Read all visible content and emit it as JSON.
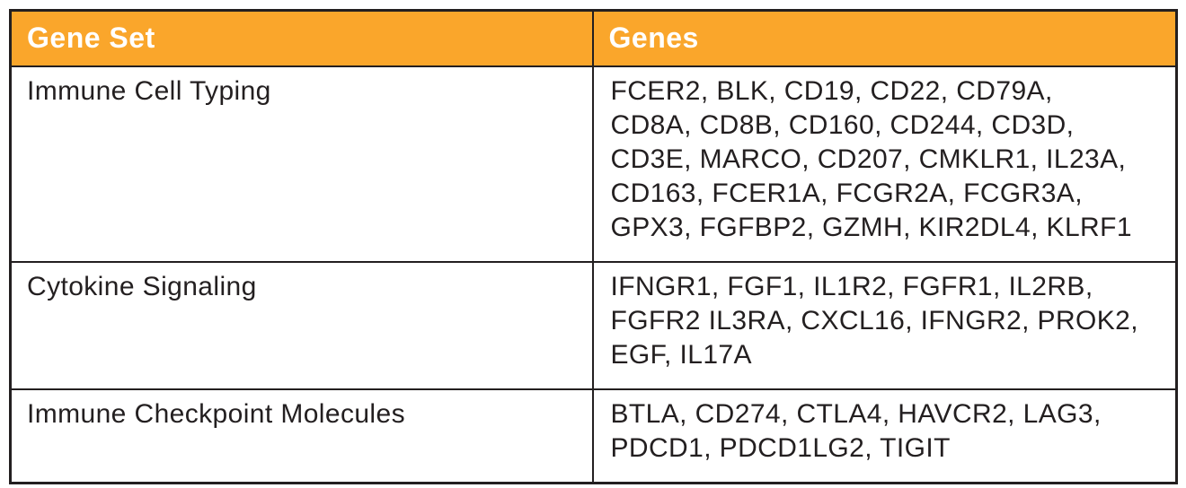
{
  "table": {
    "headers": [
      "Gene Set",
      "Genes"
    ],
    "rows": [
      {
        "gene_set": "Immune Cell Typing",
        "genes": "FCER2, BLK, CD19, CD22, CD79A, CD8A, CD8B, CD160, CD244, CD3D, CD3E, MARCO, CD207, CMKLR1, IL23A, CD163, FCER1A, FCGR2A, FCGR3A, GPX3, FGFBP2, GZMH, KIR2DL4, KLRF1",
        "genes_lines": [
          "FCER2, BLK, CD19, CD22, CD79A,",
          "CD8A, CD8B, CD160, CD244, CD3D,",
          "CD3E, MARCO, CD207, CMKLR1, IL23A,",
          "CD163, FCER1A, FCGR2A, FCGR3A,",
          "GPX3, FGFBP2, GZMH, KIR2DL4, KLRF1"
        ]
      },
      {
        "gene_set": "Cytokine Signaling",
        "genes": "IFNGR1, FGF1, IL1R2, FGFR1, IL2RB, FGFR2 IL3RA, CXCL16, IFNGR2, PROK2, EGF, IL17A",
        "genes_lines": [
          "IFNGR1, FGF1, IL1R2, FGFR1, IL2RB,",
          "FGFR2 IL3RA, CXCL16, IFNGR2, PROK2,",
          "EGF, IL17A"
        ]
      },
      {
        "gene_set": "Immune Checkpoint Molecules",
        "genes": "BTLA, CD274, CTLA4, HAVCR2, LAG3, PDCD1, PDCD1LG2, TIGIT",
        "genes_lines": [
          "BTLA, CD274, CTLA4, HAVCR2, LAG3,",
          "PDCD1, PDCD1LG2, TIGIT"
        ]
      }
    ]
  },
  "colors": {
    "header_bg": "#faa62b",
    "header_text": "#ffffff",
    "border": "#231f20",
    "body_text": "#231f20",
    "background": "#ffffff"
  }
}
